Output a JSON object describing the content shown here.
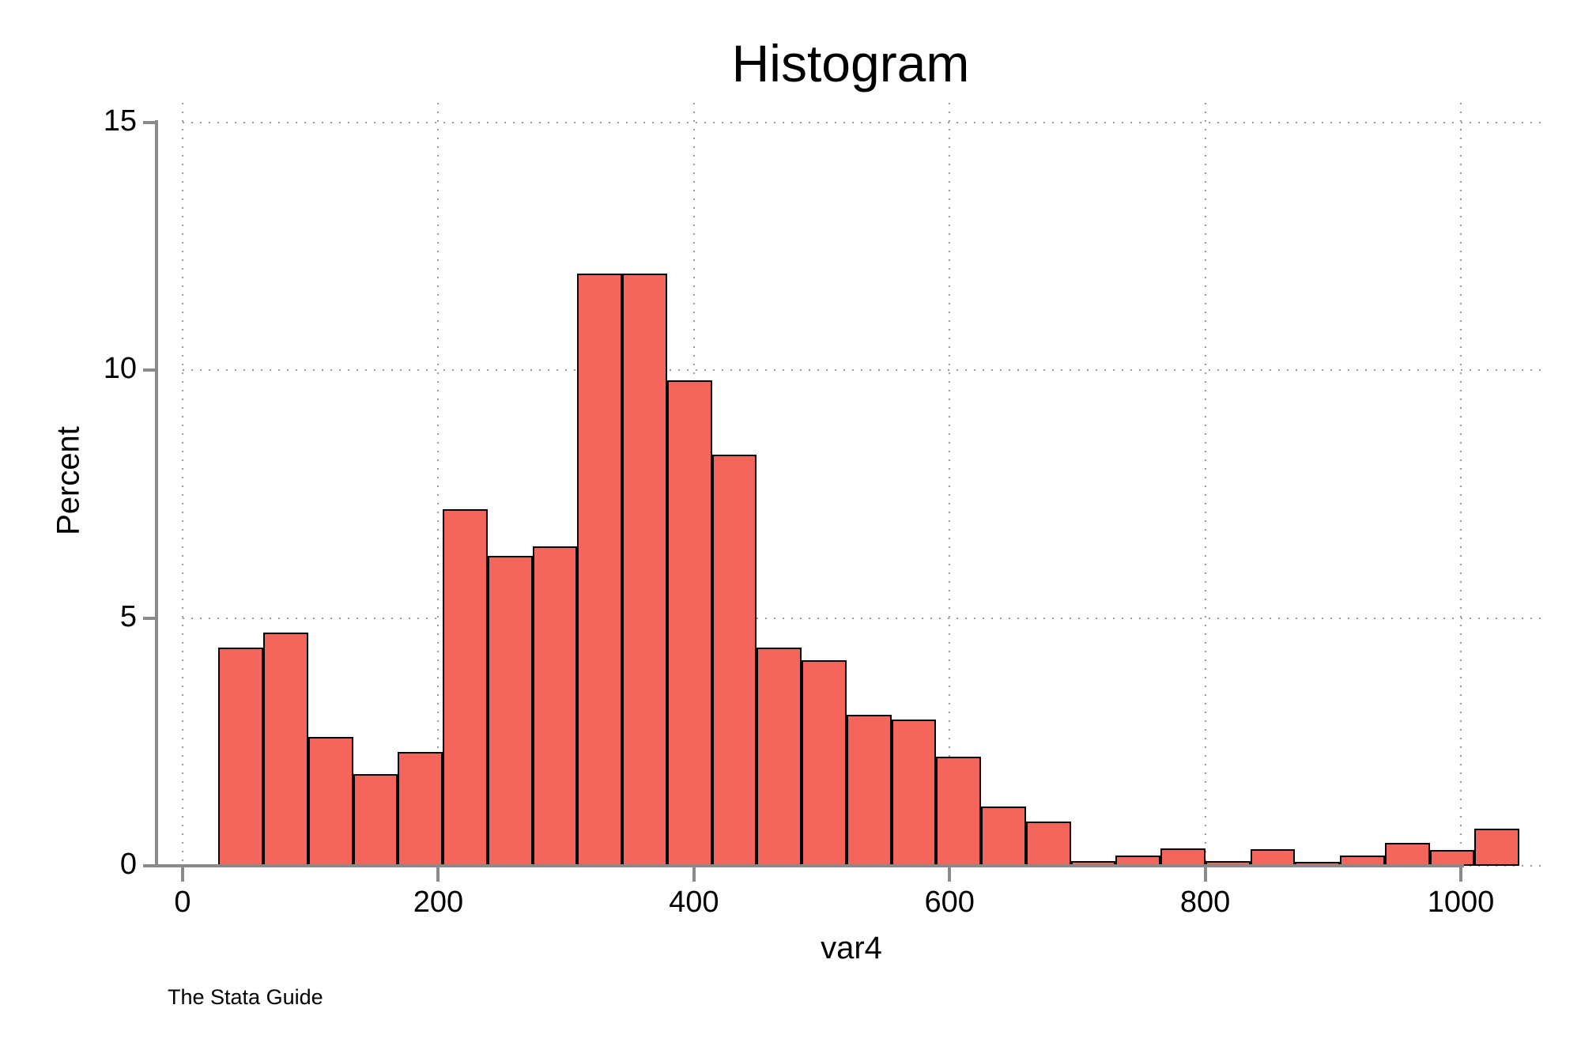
{
  "title": "Histogram",
  "watermark": "The Stata Guide",
  "chart_data": {
    "type": "bar",
    "title": "Histogram",
    "xlabel": "var4",
    "ylabel": "Percent",
    "x_ticks": [
      0,
      200,
      400,
      600,
      800,
      1000
    ],
    "y_ticks": [
      0,
      5,
      10,
      15
    ],
    "xlim": [
      -20,
      1065
    ],
    "ylim": [
      0,
      15.4
    ],
    "grid": "dotted, horizontal and vertical, at every tick",
    "legend": "none",
    "bin_start": 28,
    "bin_width": 35.1,
    "bar_unit": "percent",
    "values": [
      4.4,
      4.7,
      2.6,
      1.85,
      2.3,
      7.2,
      6.25,
      6.45,
      11.95,
      11.95,
      9.8,
      8.3,
      4.4,
      4.15,
      3.05,
      2.95,
      2.2,
      1.2,
      0.9,
      0.1,
      0.2,
      0.35,
      0.1,
      0.33,
      0.08,
      0.2,
      0.47,
      0.32,
      0.75
    ],
    "colors": {
      "bar_fill": "#f4655c",
      "bar_border": "#000000",
      "axis": "#8a8a8a",
      "grid": "#9a9a9a",
      "text": "#000000",
      "background": "#ffffff"
    }
  }
}
